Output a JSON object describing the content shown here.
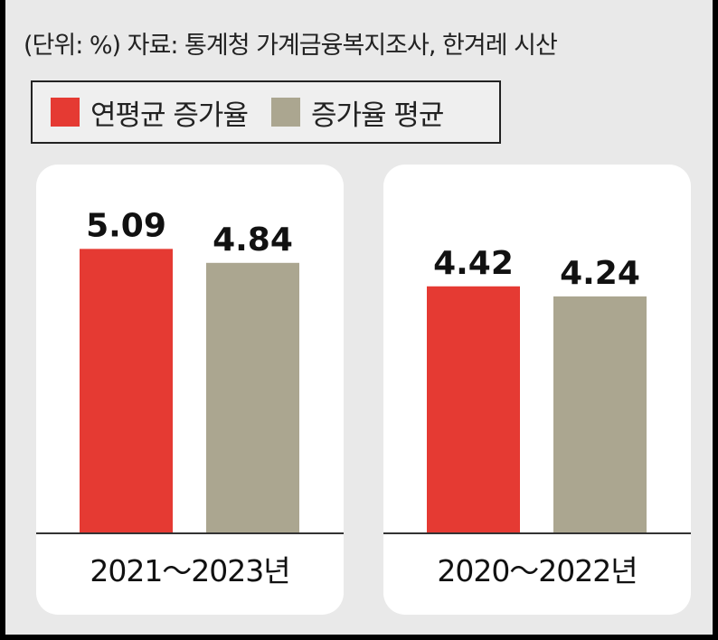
{
  "note": "(단위: %) 자료: 통계청 가계금융복지조사, 한겨레 시산",
  "colors": {
    "series1": "#e53a33",
    "series2": "#aba690"
  },
  "chart_data": {
    "type": "bar",
    "series_names": [
      "연평균 증가율",
      "증가율 평균"
    ],
    "ylim": [
      0,
      6.6
    ],
    "panels": [
      {
        "category": "2021～2023년",
        "values": [
          5.09,
          4.84
        ],
        "labels": [
          "5.09",
          "4.84"
        ]
      },
      {
        "category": "2020～2022년",
        "values": [
          4.42,
          4.24
        ],
        "labels": [
          "4.42",
          "4.24"
        ]
      }
    ]
  }
}
